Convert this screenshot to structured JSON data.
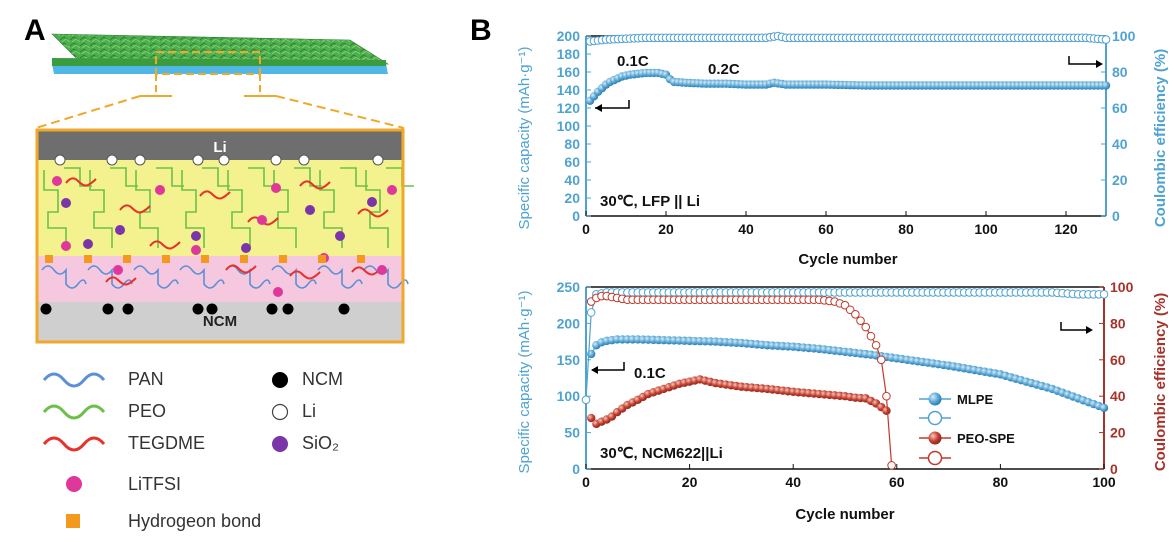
{
  "panels": {
    "a": "A",
    "b": "B"
  },
  "schematic": {
    "top_label": "Li",
    "bottom_label": "NCM",
    "legend": [
      {
        "key": "pan",
        "label": "PAN",
        "color": "#5b8fd6"
      },
      {
        "key": "peo",
        "label": "PEO",
        "color": "#6cc04a"
      },
      {
        "key": "tegdme",
        "label": "TEGDME",
        "color": "#e8312a"
      },
      {
        "key": "ncm",
        "label": "NCM",
        "color": "#000000"
      },
      {
        "key": "li",
        "label": "Li",
        "color": "#ffffff"
      },
      {
        "key": "sio2",
        "label": "SiO₂",
        "color": "#7a35a8"
      },
      {
        "key": "litfsi",
        "label": "LiTFSI",
        "color": "#e0379a"
      },
      {
        "key": "hbond",
        "label": "Hydrogeon bond",
        "color": "#f39a1e"
      }
    ]
  },
  "colors": {
    "capacity_axis": "#4fa3d1",
    "mlpe": "#4fa3d1",
    "peo_spe": "#c0392b",
    "ce_axis_bottom": "#a8322a",
    "layer_yellow": "#f3f28e",
    "layer_pink": "#f6c8df",
    "frame": "#f0a82a"
  },
  "chart_data": [
    {
      "type": "scatter",
      "annotation_condition": "30℃, LFP || Li",
      "annotations": [
        "0.1C",
        "0.2C"
      ],
      "xlabel": "Cycle number",
      "ylabel": "Specific capacity (mAh·g⁻¹)",
      "y2label": "Coulombic efficiency (%)",
      "xlim": [
        0,
        130
      ],
      "ylim": [
        0,
        200
      ],
      "y2lim": [
        0,
        100
      ],
      "xticks": [
        0,
        20,
        40,
        60,
        80,
        100,
        120
      ],
      "yticks": [
        0,
        20,
        40,
        60,
        80,
        100,
        120,
        140,
        160,
        180,
        200
      ],
      "y2ticks": [
        0,
        20,
        40,
        60,
        80,
        100
      ],
      "series": [
        {
          "key": "cap",
          "axis": "left",
          "filled": true,
          "x": [
            1,
            2,
            3,
            4,
            5,
            6,
            7,
            8,
            9,
            10,
            11,
            12,
            13,
            14,
            15,
            16,
            17,
            18,
            19,
            20,
            21,
            22,
            25,
            30,
            35,
            40,
            45,
            47,
            50,
            60,
            70,
            80,
            90,
            100,
            110,
            120,
            130
          ],
          "y": [
            128,
            133,
            138,
            142,
            146,
            149,
            151,
            153,
            155,
            156,
            157,
            157.5,
            158,
            158.5,
            159,
            159,
            159,
            159,
            158,
            157,
            152,
            149,
            148,
            147,
            147,
            146,
            146,
            148,
            146,
            146,
            145,
            145,
            145,
            145,
            145,
            145,
            145
          ]
        },
        {
          "key": "ce",
          "axis": "right",
          "filled": false,
          "x": [
            1,
            5,
            10,
            15,
            20,
            25,
            30,
            35,
            40,
            45,
            48,
            50,
            55,
            60,
            65,
            70,
            75,
            80,
            85,
            90,
            95,
            100,
            105,
            110,
            115,
            120,
            125,
            130
          ],
          "y": [
            97,
            98,
            98.5,
            99,
            99,
            99,
            99,
            99,
            99,
            99,
            100,
            99,
            99,
            99,
            99,
            99,
            99,
            99,
            99,
            99,
            99,
            99,
            99,
            99,
            99,
            99,
            99,
            98
          ]
        }
      ]
    },
    {
      "type": "scatter",
      "annotation_condition": "30℃, NCM622||Li",
      "annotations": [
        "0.1C"
      ],
      "xlabel": "Cycle number",
      "ylabel": "Specific capacity (mAh·g⁻¹)",
      "y2label": "Coulombic efficiency (%)",
      "xlim": [
        0,
        100
      ],
      "ylim": [
        0,
        250
      ],
      "y2lim": [
        0,
        100
      ],
      "xticks": [
        0,
        20,
        40,
        60,
        80,
        100
      ],
      "yticks": [
        0,
        50,
        100,
        150,
        200,
        250
      ],
      "y2ticks": [
        0,
        20,
        40,
        60,
        80,
        100
      ],
      "series": [
        {
          "key": "mlpe_cap",
          "name": "MLPE",
          "axis": "left",
          "filled": true,
          "x": [
            1,
            2,
            3,
            4,
            5,
            6,
            8,
            10,
            15,
            20,
            25,
            30,
            35,
            40,
            45,
            50,
            55,
            60,
            65,
            70,
            75,
            80,
            85,
            90,
            95,
            100
          ],
          "y": [
            158,
            170,
            174,
            176,
            177,
            178,
            178,
            178,
            177,
            176,
            175,
            173,
            170,
            168,
            165,
            161,
            157,
            152,
            147,
            142,
            136,
            130,
            120,
            110,
            97,
            84
          ]
        },
        {
          "key": "mlpe_ce",
          "name": "",
          "axis": "right",
          "filled": false,
          "x": [
            0,
            1,
            2,
            4,
            6,
            8,
            10,
            15,
            20,
            25,
            30,
            35,
            40,
            45,
            50,
            55,
            60,
            65,
            70,
            75,
            80,
            85,
            90,
            95,
            100
          ],
          "y": [
            38,
            86,
            96,
            97,
            97,
            97,
            97,
            97,
            97,
            97,
            97,
            97,
            97,
            97,
            97,
            97,
            97,
            97,
            97,
            97,
            97,
            97,
            97,
            96,
            96
          ]
        },
        {
          "key": "peo_cap",
          "name": "PEO-SPE",
          "axis": "left",
          "filled": true,
          "x": [
            1,
            2,
            3,
            4,
            5,
            6,
            8,
            10,
            12,
            15,
            18,
            20,
            22,
            25,
            30,
            35,
            40,
            45,
            50,
            52,
            54,
            56,
            58
          ],
          "y": [
            70,
            62,
            65,
            68,
            72,
            78,
            88,
            95,
            103,
            110,
            117,
            120,
            123,
            118,
            113,
            110,
            106,
            103,
            100,
            98,
            97,
            90,
            80
          ]
        },
        {
          "key": "peo_ce",
          "name": "",
          "axis": "right",
          "filled": false,
          "x": [
            1,
            2,
            3,
            4,
            6,
            8,
            10,
            15,
            20,
            25,
            30,
            35,
            40,
            45,
            48,
            50,
            52,
            54,
            56,
            57,
            58,
            59
          ],
          "y": [
            92,
            94,
            95,
            95,
            94,
            93,
            93,
            93,
            93,
            93,
            93,
            93,
            93,
            93,
            92,
            90,
            85,
            78,
            68,
            60,
            40,
            2
          ]
        }
      ]
    }
  ]
}
